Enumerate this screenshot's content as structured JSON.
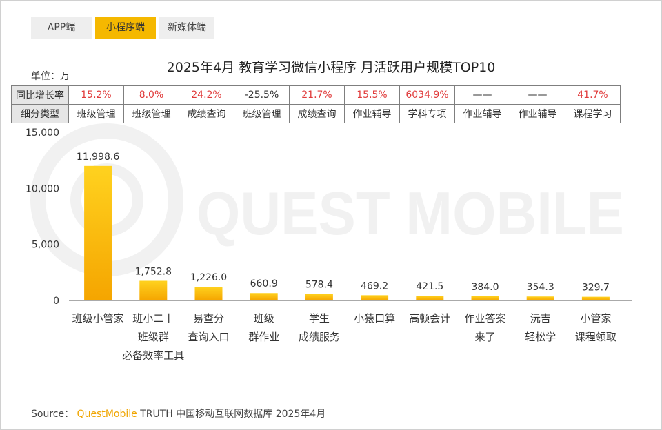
{
  "tabs": [
    {
      "label": "APP端",
      "active": false
    },
    {
      "label": "小程序端",
      "active": true
    },
    {
      "label": "新媒体端",
      "active": false
    }
  ],
  "unit_label": "单位：万",
  "table": {
    "growth_header": "同比增长率",
    "type_header": "细分类型",
    "growth": [
      "15.2%",
      "8.0%",
      "24.2%",
      "-25.5%",
      "21.7%",
      "15.5%",
      "6034.9%",
      "——",
      "——",
      "41.7%"
    ],
    "types": [
      "班级管理",
      "班级管理",
      "成绩查询",
      "班级管理",
      "成绩查询",
      "作业辅导",
      "学科专项",
      "作业辅导",
      "作业辅导",
      "课程学习"
    ]
  },
  "watermark_text": "QUEST MOBILE",
  "source": {
    "prefix": "Source：",
    "brand": "QuestMobile",
    "rest": "TRUTH 中国移动互联网数据库 2025年4月"
  },
  "colors": {
    "bar_top": "#ffd21f",
    "bar_bottom": "#f5a500",
    "tab_active": "#f5b800",
    "growth_text": "#e03a3a"
  },
  "chart_data": {
    "type": "bar",
    "title": "2025年4月 教育学习微信小程序 月活跃用户规模TOP10",
    "categories": [
      [
        "班级小管家"
      ],
      [
        "班小二丨",
        "班级群",
        "必备效率工具"
      ],
      [
        "易查分",
        "查询入口"
      ],
      [
        "班级",
        "群作业"
      ],
      [
        "学生",
        "成绩服务"
      ],
      [
        "小猿口算"
      ],
      [
        "高顿会计"
      ],
      [
        "作业答案",
        "来了"
      ],
      [
        "沅吉",
        "轻松学"
      ],
      [
        "小管家",
        "课程领取"
      ]
    ],
    "values": [
      11998.6,
      1752.8,
      1226.0,
      660.9,
      578.4,
      469.2,
      421.5,
      384.0,
      354.3,
      329.7
    ],
    "value_labels": [
      "11,998.6",
      "1,752.8",
      "1,226.0",
      "660.9",
      "578.4",
      "469.2",
      "421.5",
      "384.0",
      "354.3",
      "329.7"
    ],
    "yticks": [
      0,
      5000,
      10000,
      15000
    ],
    "ytick_labels": [
      "0",
      "5,000",
      "10,000",
      "15,000"
    ],
    "ylim": [
      0,
      15000
    ],
    "grid": false,
    "legend": "none"
  }
}
